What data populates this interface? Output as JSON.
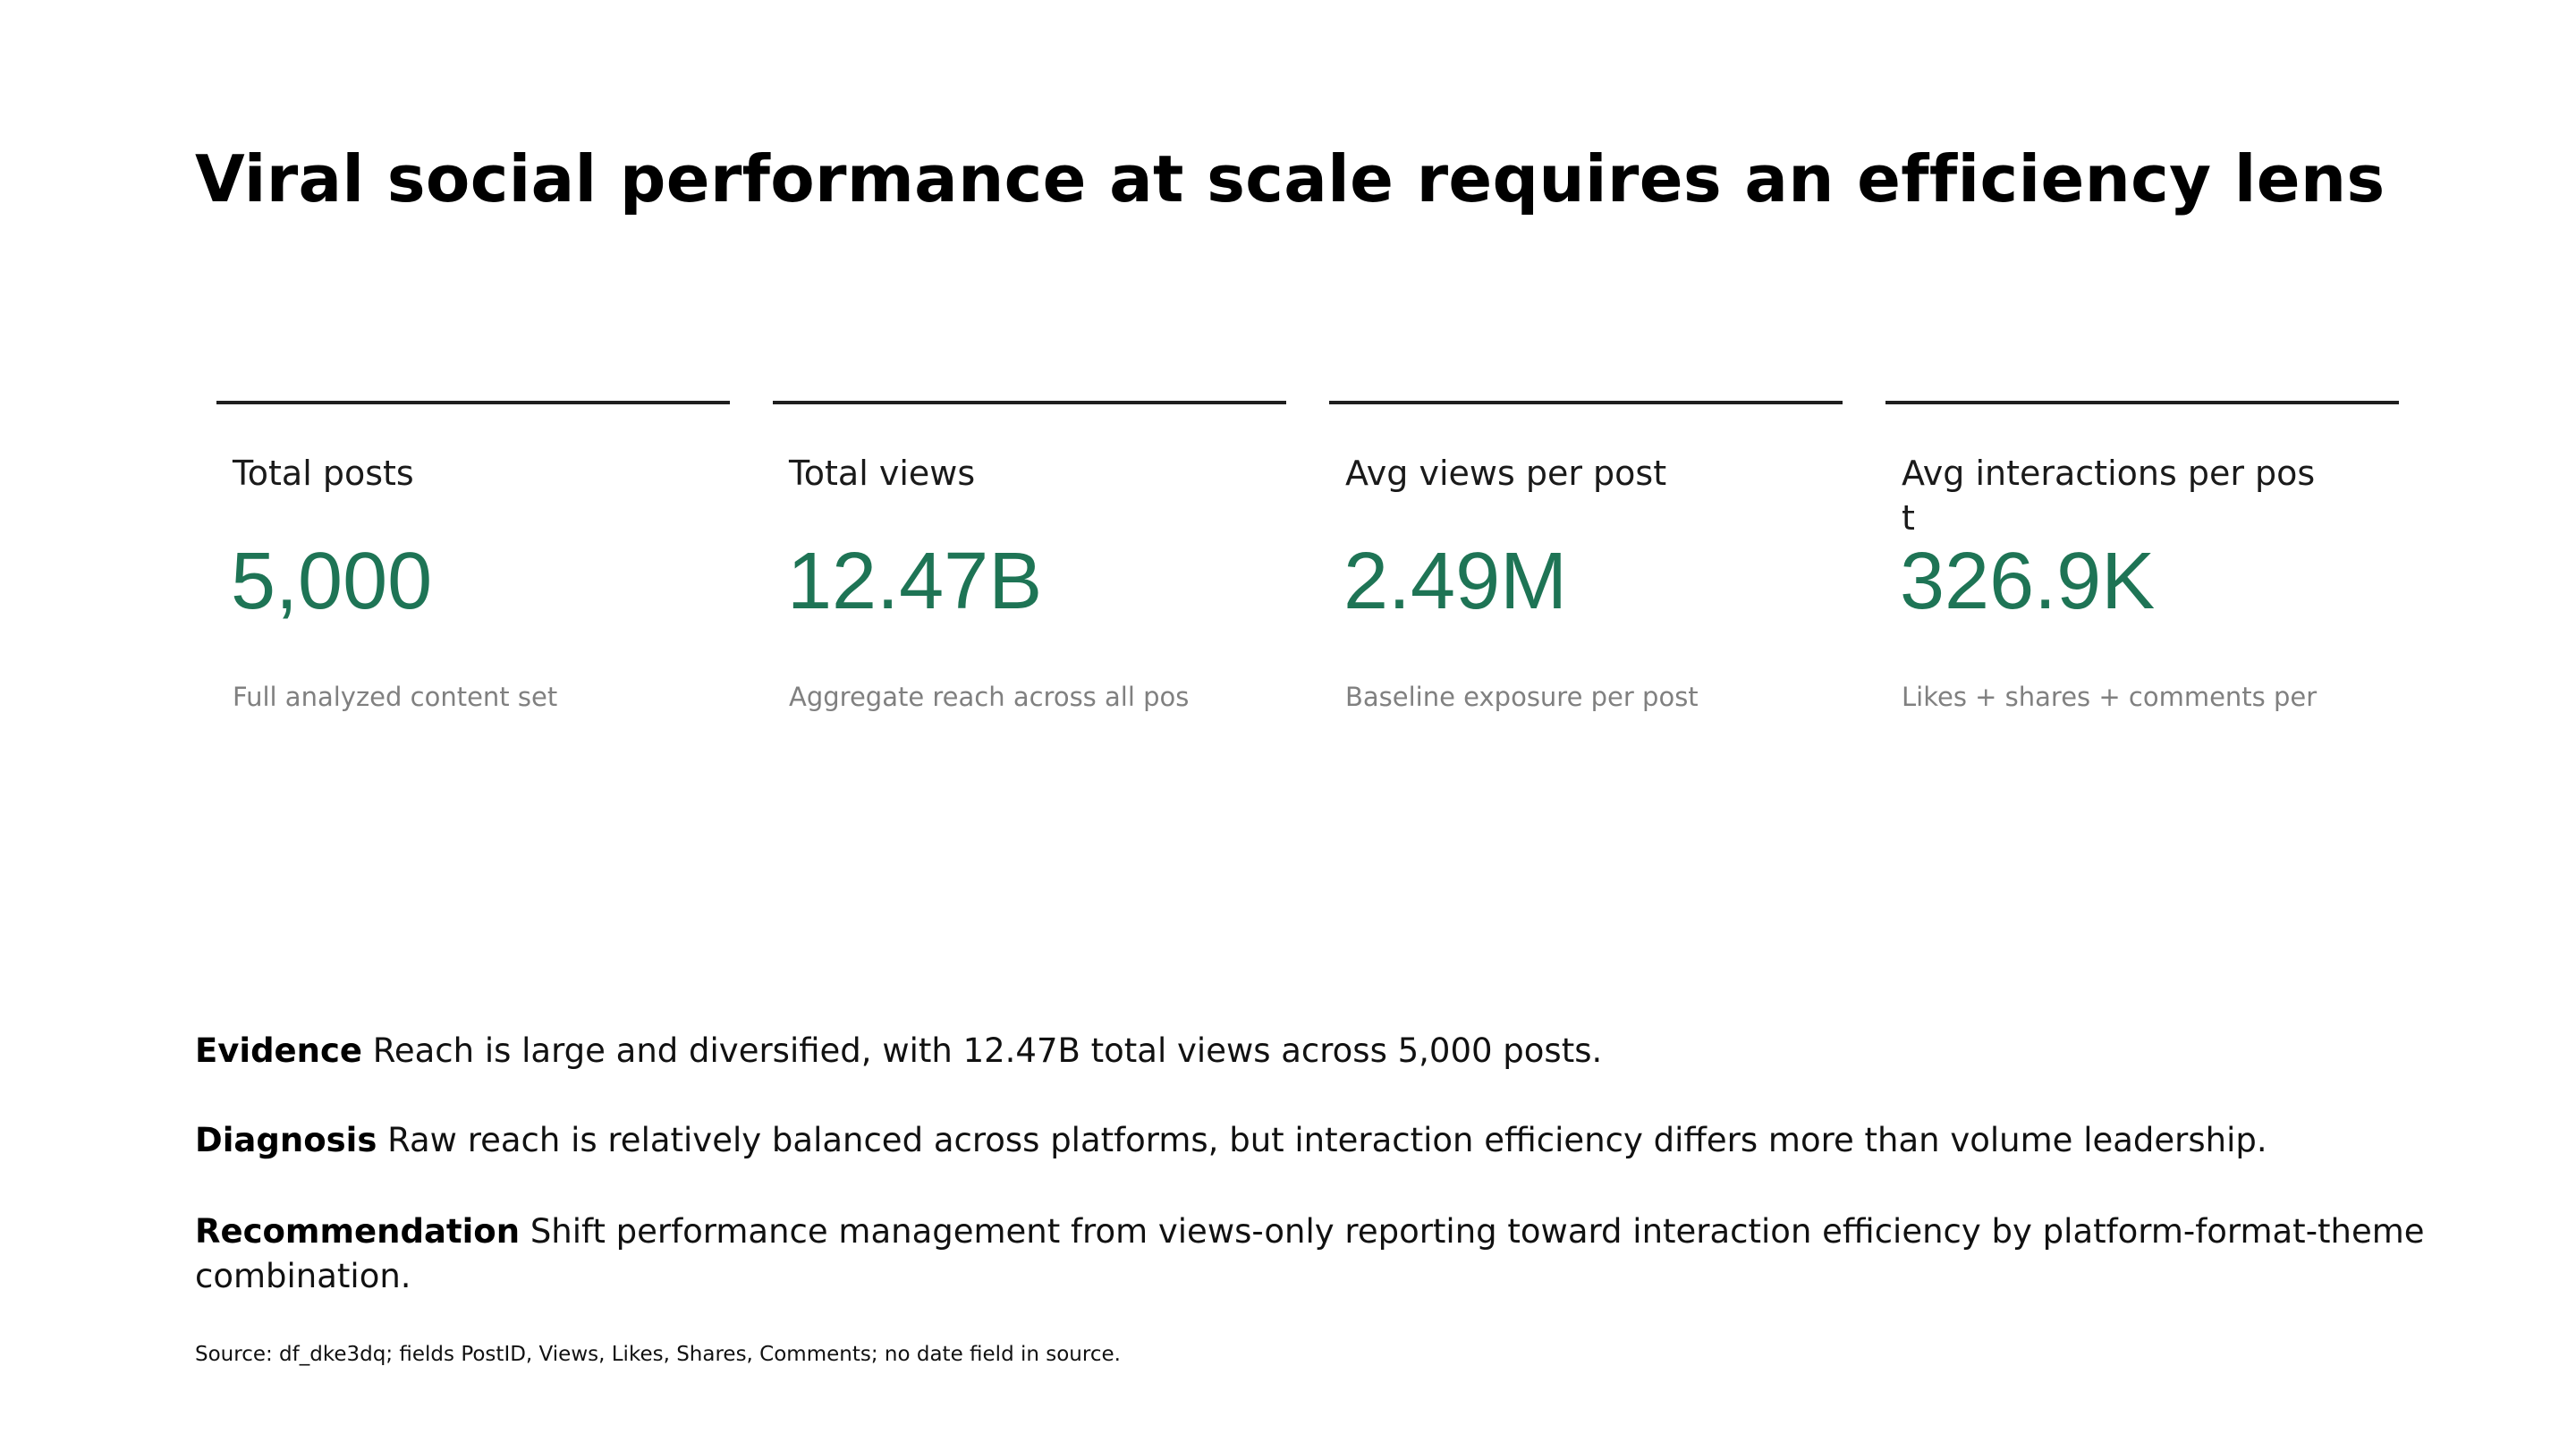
{
  "title": "Viral social performance at scale requires an efficiency lens",
  "kpis": [
    {
      "label": "Total posts",
      "value": "5,000",
      "note": "Full analyzed content set"
    },
    {
      "label": "Total views",
      "value": "12.47B",
      "note": "Aggregate reach across all pos"
    },
    {
      "label": "Avg views per post",
      "value": "2.49M",
      "note": "Baseline exposure per post"
    },
    {
      "label": "Avg interactions per post",
      "value": "326.9K",
      "note": "Likes + shares + comments per p"
    }
  ],
  "narrative": {
    "evidence": {
      "label": "Evidence",
      "text": " Reach is large and diversified, with 12.47B total views across 5,000 posts."
    },
    "diagnosis": {
      "label": "Diagnosis",
      "text": " Raw reach is relatively balanced across platforms, but interaction efficiency differs more than volume leadership."
    },
    "recommendation": {
      "label": "Recommendation",
      "text": " Shift performance management from views-only reporting toward interaction efficiency by platform-format-theme combination."
    }
  },
  "source": "Source: df_dke3dq; fields PostID, Views, Likes, Shares, Comments; no date field in source."
}
